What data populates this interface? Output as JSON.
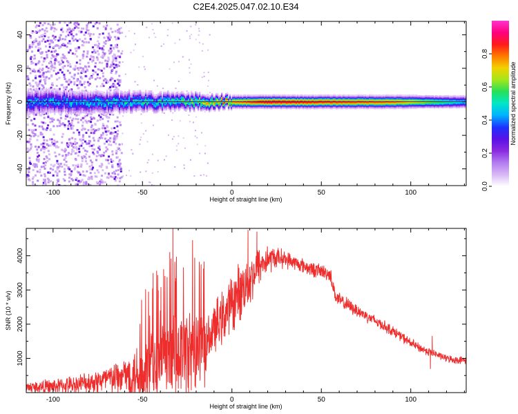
{
  "title": "C2E4.2025.047.02.10.E34",
  "colors": {
    "snr_line": "#ee2d2d",
    "axis": "#000000",
    "colormap": [
      "#ffffff",
      "#d9b8f5",
      "#b27cf0",
      "#8b2be0",
      "#5a10e6",
      "#1c33ff",
      "#00b3ff",
      "#00e6c8",
      "#25e05a",
      "#a3e61a",
      "#f2d200",
      "#ff7a00",
      "#ff1a1a",
      "#ff0080",
      "#ff33cc"
    ]
  },
  "chart_data": [
    {
      "type": "heatmap",
      "title": "",
      "xlabel": "Height of straight line (km)",
      "ylabel": "Frequency (Hz)",
      "xlim": [
        -115,
        131
      ],
      "ylim": [
        -50,
        48
      ],
      "x_ticks": [
        -100,
        -50,
        0,
        50,
        100
      ],
      "x_tick_labels": [
        "-100",
        "-50",
        "0",
        "50",
        "100"
      ],
      "y_ticks": [
        -40,
        -20,
        0,
        20,
        40
      ],
      "y_tick_labels": [
        "-40",
        "-20",
        "0",
        "20",
        "40"
      ],
      "colorbar": {
        "label": "Normalized spectral amplitude",
        "range": [
          0,
          1
        ],
        "ticks": [
          0.0,
          0.2,
          0.4,
          0.6,
          0.8
        ],
        "tick_labels": [
          "0.0",
          "0.2",
          "0.4",
          "0.6",
          "0.8"
        ]
      },
      "description_points": {
        "center_frequency_hz": 0,
        "band_halfwidth_hz": [
          [
            -115,
            6
          ],
          [
            -60,
            5
          ],
          [
            -20,
            4
          ],
          [
            0,
            3
          ],
          [
            50,
            3
          ],
          [
            131,
            3
          ]
        ],
        "peak_amplitude": [
          [
            -115,
            0.4
          ],
          [
            -60,
            0.45
          ],
          [
            -30,
            0.5
          ],
          [
            -10,
            0.7
          ],
          [
            20,
            0.9
          ],
          [
            50,
            0.85
          ],
          [
            90,
            0.8
          ],
          [
            131,
            0.45
          ]
        ],
        "scatter_noise_region_km": [
          -115,
          -62
        ]
      }
    },
    {
      "type": "line",
      "title": "",
      "xlabel": "Height of straight line (km)",
      "ylabel": "SNR (10 * v/v)",
      "xlim": [
        -115,
        131
      ],
      "ylim": [
        0,
        4800
      ],
      "x_ticks": [
        -100,
        -50,
        0,
        50,
        100
      ],
      "x_tick_labels": [
        "-100",
        "-50",
        "0",
        "50",
        "100"
      ],
      "y_ticks": [
        1000,
        2000,
        3000,
        4000
      ],
      "y_tick_labels": [
        "1000",
        "2000",
        "3000",
        "4000"
      ],
      "series": [
        {
          "name": "SNR",
          "envelope_x": [
            -115,
            -100,
            -90,
            -80,
            -70,
            -60,
            -50,
            -40,
            -30,
            -20,
            -15,
            -14,
            -10,
            -5,
            0,
            5,
            10,
            15,
            20,
            25,
            30,
            35,
            40,
            45,
            50,
            55,
            58,
            60,
            70,
            80,
            90,
            100,
            105,
            110,
            115,
            120,
            125,
            131
          ],
          "envelope_mean": [
            150,
            180,
            220,
            300,
            380,
            480,
            650,
            850,
            1050,
            1250,
            1350,
            1500,
            1850,
            2200,
            2600,
            3000,
            3300,
            3700,
            3900,
            3950,
            3900,
            3800,
            3700,
            3600,
            3550,
            3450,
            2800,
            2700,
            2400,
            2100,
            1800,
            1450,
            1300,
            1200,
            1100,
            1000,
            950,
            950
          ],
          "envelope_amplitude": [
            200,
            250,
            300,
            380,
            500,
            700,
            1200,
            1500,
            1700,
            1600,
            1500,
            700,
            900,
            900,
            1000,
            1000,
            900,
            700,
            500,
            350,
            300,
            250,
            250,
            250,
            250,
            250,
            250,
            250,
            220,
            200,
            180,
            160,
            150,
            140,
            120,
            120,
            120,
            120
          ],
          "spikes": [
            {
              "x": -33,
              "y": 4800
            },
            {
              "x": -22,
              "y": 4450
            },
            {
              "x": 9,
              "y": 4750
            },
            {
              "x": 14,
              "y": 4700
            },
            {
              "x": 111,
              "y": 700
            },
            {
              "x": 112,
              "y": 1650
            }
          ]
        }
      ]
    }
  ]
}
